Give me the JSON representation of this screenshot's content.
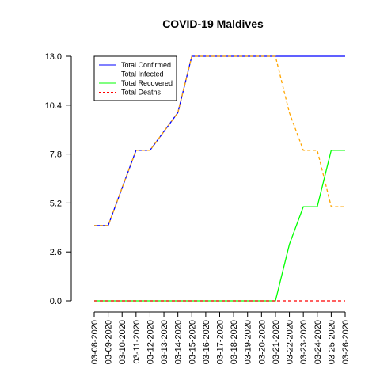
{
  "chart_data": {
    "type": "line",
    "title": "COVID-19 Maldives",
    "xlabel": "",
    "ylabel": "",
    "ylim": [
      0,
      13
    ],
    "yticks": [
      "0.0",
      "2.6",
      "5.2",
      "7.8",
      "10.4",
      "13.0"
    ],
    "grid": false,
    "legend_position": "top-left",
    "categories": [
      "03-08-2020",
      "03-09-2020",
      "03-10-2020",
      "03-11-2020",
      "03-12-2020",
      "03-13-2020",
      "03-14-2020",
      "03-15-2020",
      "03-16-2020",
      "03-17-2020",
      "03-18-2020",
      "03-19-2020",
      "03-20-2020",
      "03-21-2020",
      "03-22-2020",
      "03-23-2020",
      "03-24-2020",
      "03-25-2020",
      "03-26-2020"
    ],
    "series": [
      {
        "name": "Total Confirmed",
        "color": "#0000ff",
        "dash": "solid",
        "values": [
          4,
          4,
          6,
          8,
          8,
          9,
          10,
          13,
          13,
          13,
          13,
          13,
          13,
          13,
          13,
          13,
          13,
          13,
          13
        ]
      },
      {
        "name": "Total Infected",
        "color": "#ffa500",
        "dash": "dashed",
        "values": [
          4,
          4,
          6,
          8,
          8,
          9,
          10,
          13,
          13,
          13,
          13,
          13,
          13,
          13,
          10,
          8,
          8,
          5,
          5
        ]
      },
      {
        "name": "Total Recovered",
        "color": "#00ff00",
        "dash": "solid",
        "values": [
          0,
          0,
          0,
          0,
          0,
          0,
          0,
          0,
          0,
          0,
          0,
          0,
          0,
          0,
          3,
          5,
          5,
          8,
          8
        ]
      },
      {
        "name": "Total Deaths",
        "color": "#ff0000",
        "dash": "dashed",
        "values": [
          0,
          0,
          0,
          0,
          0,
          0,
          0,
          0,
          0,
          0,
          0,
          0,
          0,
          0,
          0,
          0,
          0,
          0,
          0
        ]
      }
    ]
  }
}
